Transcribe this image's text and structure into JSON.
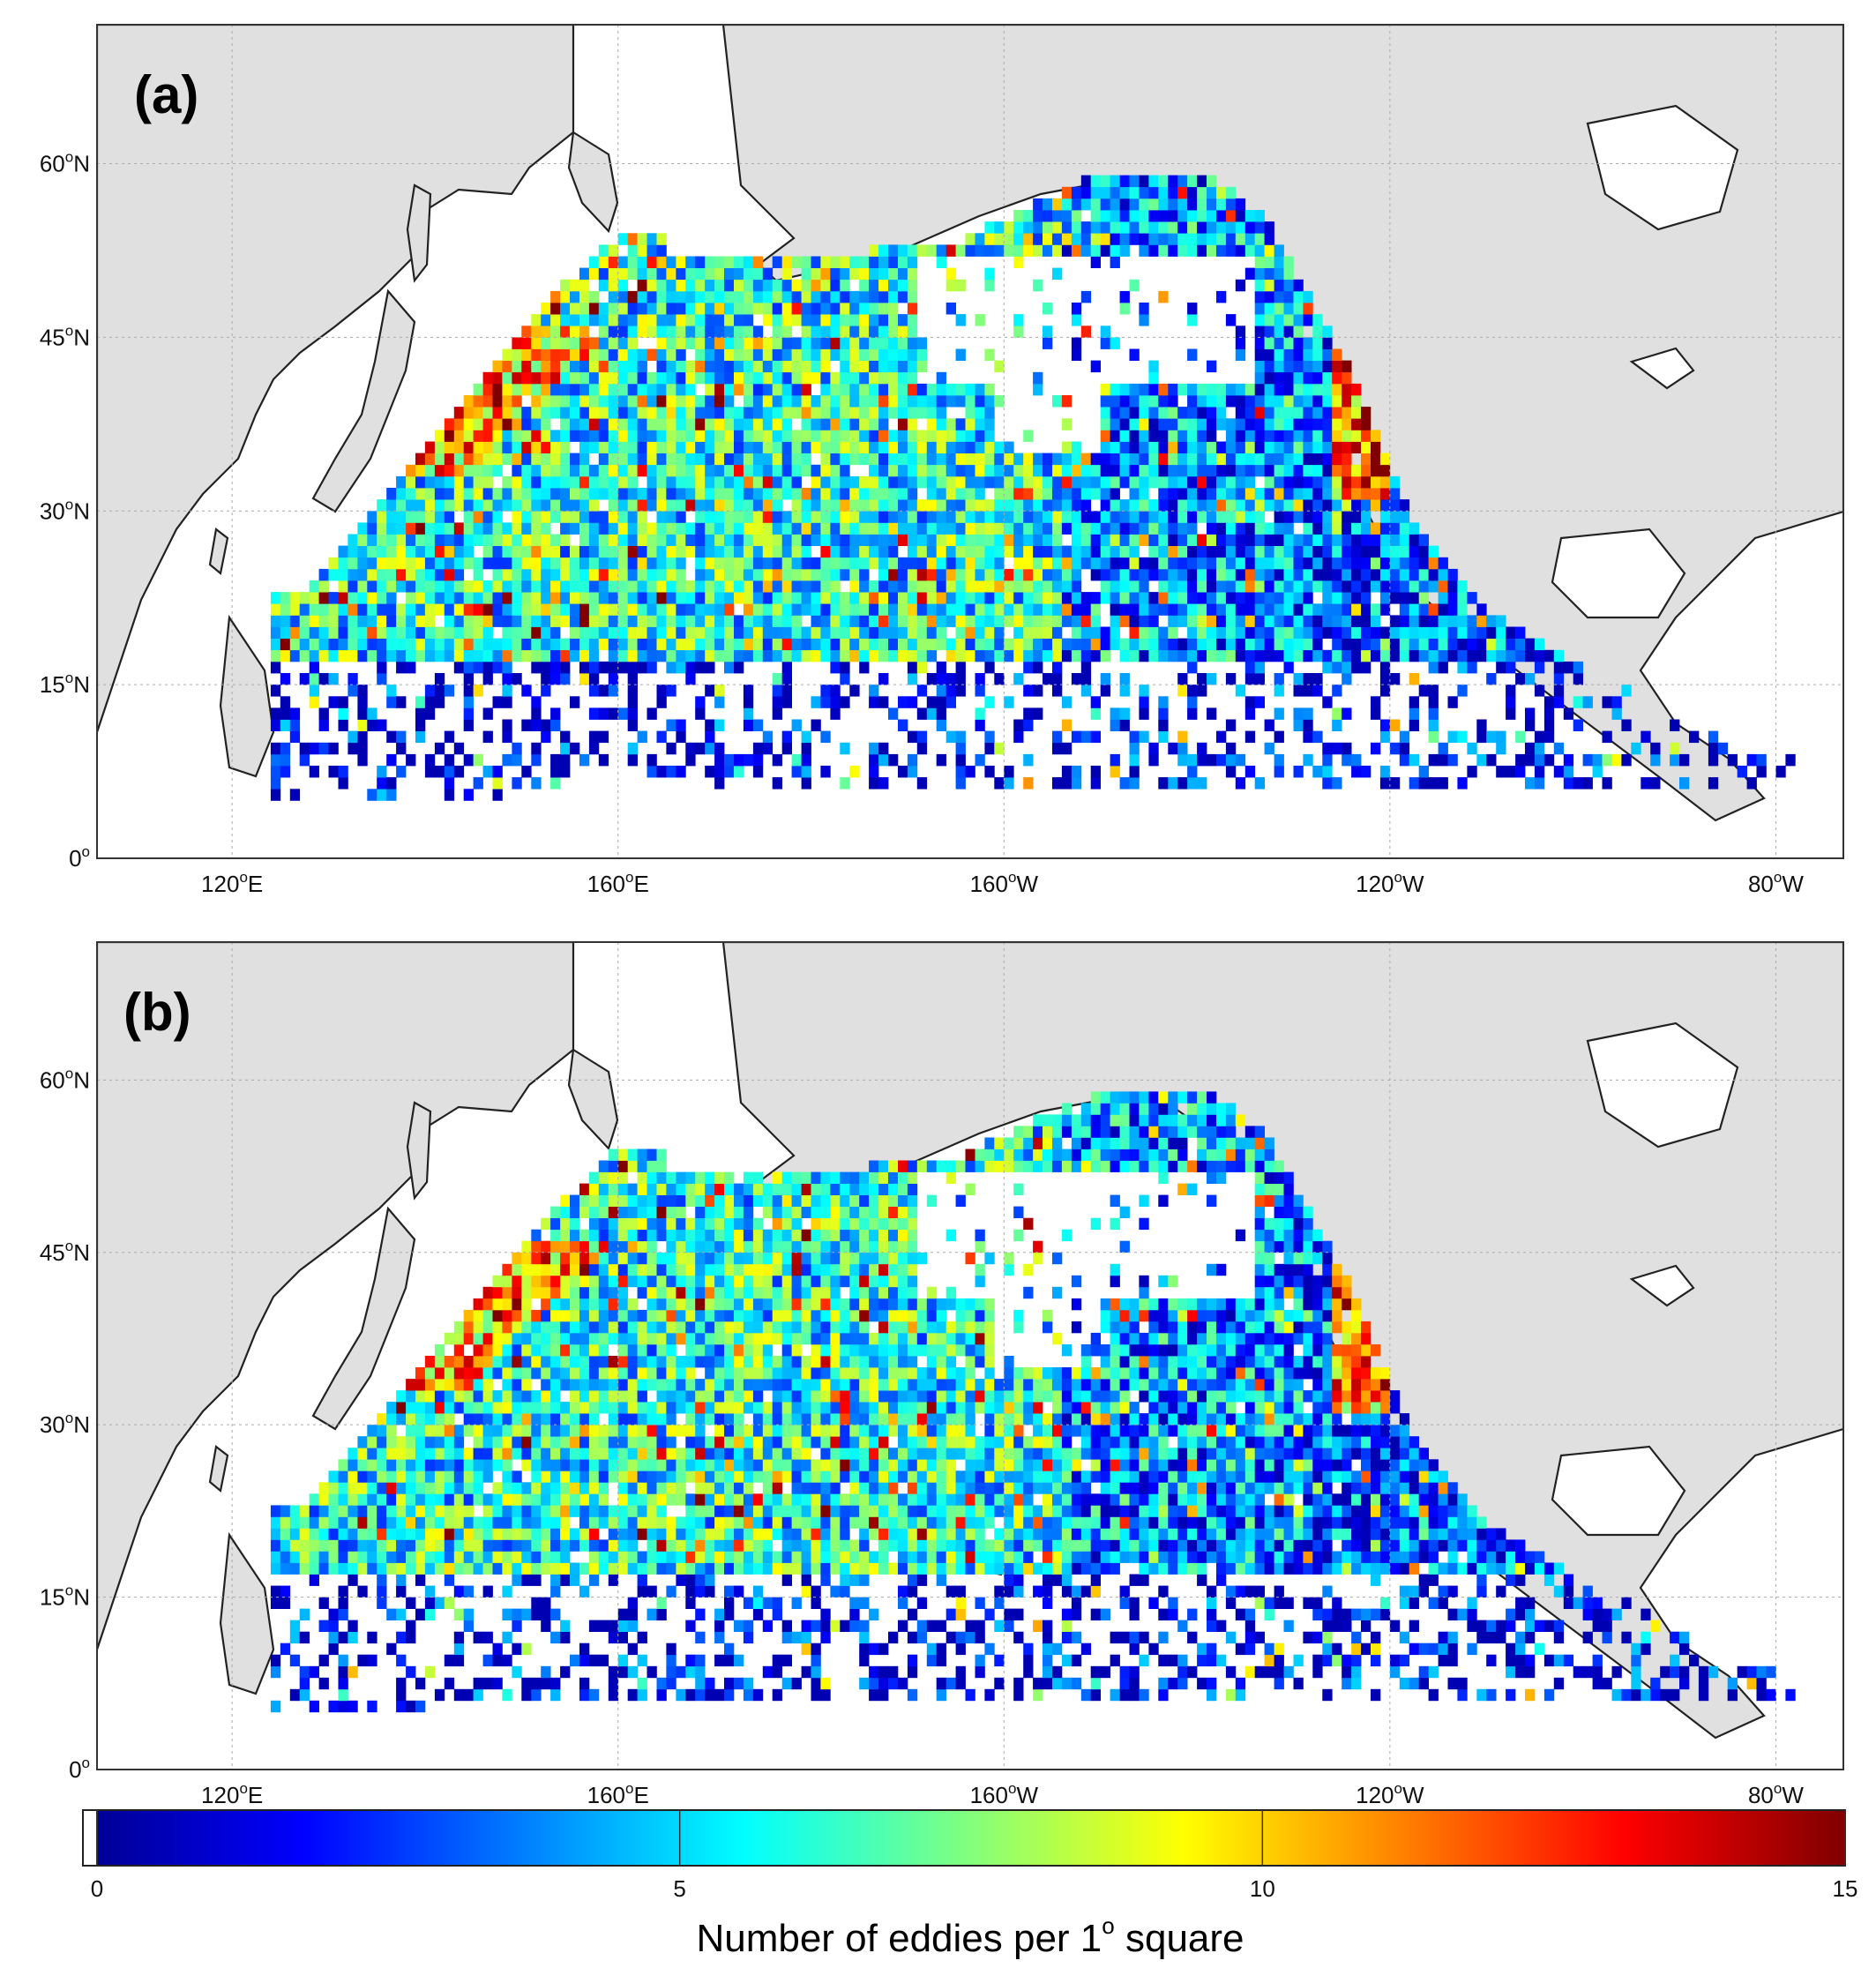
{
  "figure": {
    "panels": [
      {
        "id": "a",
        "label": "(a)"
      },
      {
        "id": "b",
        "label": "(b)"
      }
    ],
    "lon_ticks": [
      {
        "lon": 120,
        "deg": "120",
        "hemi": "E"
      },
      {
        "lon": 160,
        "deg": "160",
        "hemi": "E"
      },
      {
        "lon": 200,
        "deg": "160",
        "hemi": "W"
      },
      {
        "lon": 240,
        "deg": "120",
        "hemi": "W"
      },
      {
        "lon": 280,
        "deg": "80",
        "hemi": "W"
      }
    ],
    "lat_ticks": [
      {
        "lat": 0,
        "deg": "0",
        "hemi": ""
      },
      {
        "lat": 15,
        "deg": "15",
        "hemi": "N"
      },
      {
        "lat": 30,
        "deg": "30",
        "hemi": "N"
      },
      {
        "lat": 45,
        "deg": "45",
        "hemi": "N"
      },
      {
        "lat": 60,
        "deg": "60",
        "hemi": "N"
      }
    ],
    "lon_range_east": [
      106,
      287
    ],
    "lat_range": [
      0,
      72
    ],
    "land_color": "#e0e0e0",
    "grid": true,
    "colorbar": {
      "min": 0,
      "max": 15,
      "ticks": [
        "0",
        "5",
        "10",
        "15"
      ],
      "colormap": "jet",
      "title_text": "Number of eddies per 1",
      "title_sup": "o",
      "title_end": " square"
    }
  }
}
